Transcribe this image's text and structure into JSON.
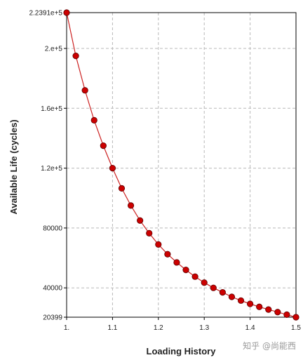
{
  "chart_data": {
    "type": "line",
    "xlabel": "Loading History",
    "ylabel": "Available Life (cycles)",
    "xlim": [
      1.0,
      1.5
    ],
    "ylim": [
      20399,
      223910
    ],
    "x_ticks": [
      1.0,
      1.1,
      1.2,
      1.3,
      1.4,
      1.5
    ],
    "x_tick_labels": [
      "1.",
      "1.1",
      "1.2",
      "1.3",
      "1.4",
      "1.5"
    ],
    "y_ticks": [
      20399,
      40000,
      80000,
      120000,
      160000,
      200000,
      223910
    ],
    "y_tick_labels": [
      "20399",
      "40000",
      "80000",
      "1.2e+5",
      "1.6e+5",
      "2.e+5",
      "2.2391e+5"
    ],
    "grid": true,
    "line_color": "#cc2222",
    "marker_color": "#cc0000",
    "series": [
      {
        "x": [
          1.0,
          1.02,
          1.04,
          1.06,
          1.08,
          1.1,
          1.12,
          1.14,
          1.16,
          1.18,
          1.2,
          1.22,
          1.24,
          1.26,
          1.28,
          1.3,
          1.32,
          1.34,
          1.36,
          1.38,
          1.4,
          1.42,
          1.44,
          1.46,
          1.48,
          1.5
        ],
        "y": [
          223910,
          195000,
          172000,
          152000,
          135000,
          120000,
          106500,
          95000,
          85000,
          76500,
          69000,
          62500,
          57000,
          52000,
          47500,
          43500,
          40000,
          37000,
          34000,
          31500,
          29300,
          27300,
          25500,
          23800,
          22100,
          20399
        ]
      }
    ]
  },
  "watermark": "知乎 @尚能西"
}
